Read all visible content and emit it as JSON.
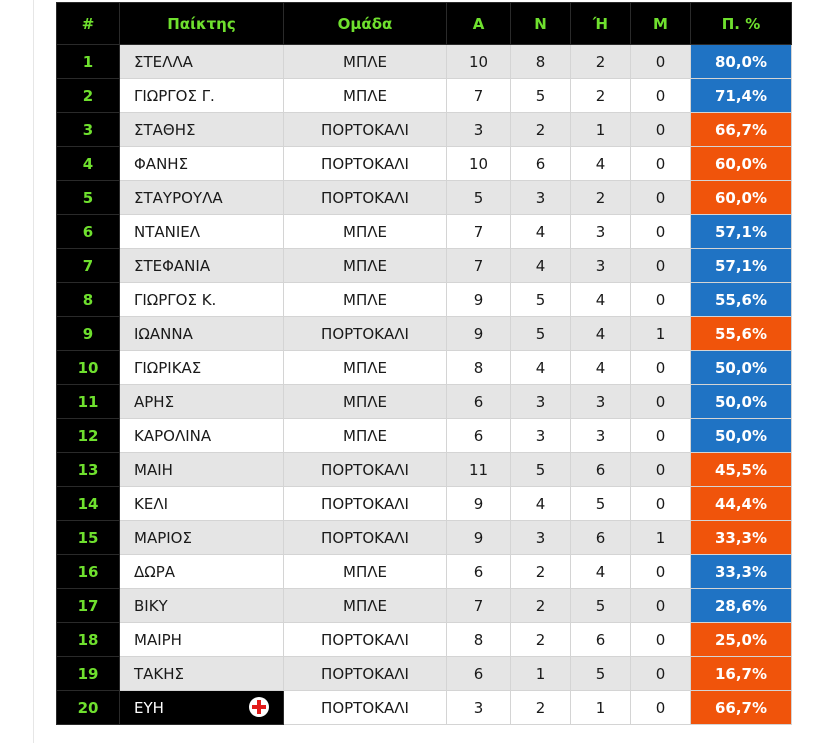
{
  "table": {
    "headers": [
      "#",
      "Παίκτης",
      "Ομάδα",
      "Α",
      "Ν",
      "Ή",
      "Μ",
      "Π. %"
    ],
    "rows": [
      {
        "rank": "1",
        "player": "ΣΤΕΛΛΑ",
        "team": "ΜΠΛΕ",
        "a": "10",
        "n": "8",
        "h": "2",
        "m": "0",
        "pct": "80,0%"
      },
      {
        "rank": "2",
        "player": "ΓΙΩΡΓΟΣ Γ.",
        "team": "ΜΠΛΕ",
        "a": "7",
        "n": "5",
        "h": "2",
        "m": "0",
        "pct": "71,4%"
      },
      {
        "rank": "3",
        "player": "ΣΤΑΘΗΣ",
        "team": "ΠΟΡΤΟΚΑΛΙ",
        "a": "3",
        "n": "2",
        "h": "1",
        "m": "0",
        "pct": "66,7%"
      },
      {
        "rank": "4",
        "player": "ΦΑΝΗΣ",
        "team": "ΠΟΡΤΟΚΑΛΙ",
        "a": "10",
        "n": "6",
        "h": "4",
        "m": "0",
        "pct": "60,0%"
      },
      {
        "rank": "5",
        "player": "ΣΤΑΥΡΟΥΛΑ",
        "team": "ΠΟΡΤΟΚΑΛΙ",
        "a": "5",
        "n": "3",
        "h": "2",
        "m": "0",
        "pct": "60,0%"
      },
      {
        "rank": "6",
        "player": "ΝΤΑΝΙΕΛ",
        "team": "ΜΠΛΕ",
        "a": "7",
        "n": "4",
        "h": "3",
        "m": "0",
        "pct": "57,1%"
      },
      {
        "rank": "7",
        "player": "ΣΤΕΦΑΝΙΑ",
        "team": "ΜΠΛΕ",
        "a": "7",
        "n": "4",
        "h": "3",
        "m": "0",
        "pct": "57,1%"
      },
      {
        "rank": "8",
        "player": "ΓΙΩΡΓΟΣ Κ.",
        "team": "ΜΠΛΕ",
        "a": "9",
        "n": "5",
        "h": "4",
        "m": "0",
        "pct": "55,6%"
      },
      {
        "rank": "9",
        "player": "ΙΩΑΝΝΑ",
        "team": "ΠΟΡΤΟΚΑΛΙ",
        "a": "9",
        "n": "5",
        "h": "4",
        "m": "1",
        "pct": "55,6%"
      },
      {
        "rank": "10",
        "player": "ΓΙΩΡΙΚΑΣ",
        "team": "ΜΠΛΕ",
        "a": "8",
        "n": "4",
        "h": "4",
        "m": "0",
        "pct": "50,0%"
      },
      {
        "rank": "11",
        "player": "ΑΡΗΣ",
        "team": "ΜΠΛΕ",
        "a": "6",
        "n": "3",
        "h": "3",
        "m": "0",
        "pct": "50,0%"
      },
      {
        "rank": "12",
        "player": "ΚΑΡΟΛΙΝΑ",
        "team": "ΜΠΛΕ",
        "a": "6",
        "n": "3",
        "h": "3",
        "m": "0",
        "pct": "50,0%"
      },
      {
        "rank": "13",
        "player": "ΜΑΙΗ",
        "team": "ΠΟΡΤΟΚΑΛΙ",
        "a": "11",
        "n": "5",
        "h": "6",
        "m": "0",
        "pct": "45,5%"
      },
      {
        "rank": "14",
        "player": "ΚΕΛΙ",
        "team": "ΠΟΡΤΟΚΑΛΙ",
        "a": "9",
        "n": "4",
        "h": "5",
        "m": "0",
        "pct": "44,4%"
      },
      {
        "rank": "15",
        "player": "ΜΑΡΙΟΣ",
        "team": "ΠΟΡΤΟΚΑΛΙ",
        "a": "9",
        "n": "3",
        "h": "6",
        "m": "1",
        "pct": "33,3%"
      },
      {
        "rank": "16",
        "player": "ΔΩΡΑ",
        "team": "ΜΠΛΕ",
        "a": "6",
        "n": "2",
        "h": "4",
        "m": "0",
        "pct": "33,3%"
      },
      {
        "rank": "17",
        "player": "ΒΙΚΥ",
        "team": "ΜΠΛΕ",
        "a": "7",
        "n": "2",
        "h": "5",
        "m": "0",
        "pct": "28,6%"
      },
      {
        "rank": "18",
        "player": "ΜΑΙΡΗ",
        "team": "ΠΟΡΤΟΚΑΛΙ",
        "a": "8",
        "n": "2",
        "h": "6",
        "m": "0",
        "pct": "25,0%"
      },
      {
        "rank": "19",
        "player": "ΤΑΚΗΣ",
        "team": "ΠΟΡΤΟΚΑΛΙ",
        "a": "6",
        "n": "1",
        "h": "5",
        "m": "0",
        "pct": "16,7%"
      },
      {
        "rank": "20",
        "player": "ΕΥΗ",
        "team": "ΠΟΡΤΟΚΑΛΙ",
        "a": "3",
        "n": "2",
        "h": "1",
        "m": "0",
        "pct": "66,7%",
        "icon": "red-cross-icon"
      }
    ]
  },
  "colors": {
    "header_bg": "#000000",
    "header_text": "#6fe02e",
    "blue_team": "#1f73c4",
    "orange_team": "#f0540b",
    "row_alt": "#e5e5e5"
  },
  "team_colors": {
    "ΜΠΛΕ": "blue",
    "ΠΟΡΤΟΚΑΛΙ": "orange"
  }
}
